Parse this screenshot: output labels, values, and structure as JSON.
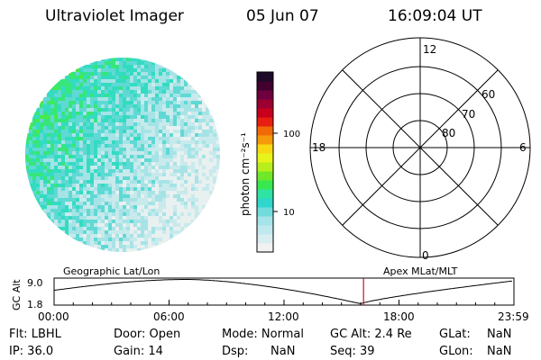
{
  "header": {
    "title": "Ultraviolet Imager",
    "date": "05 Jun 07",
    "time": "16:09:04 UT"
  },
  "colorbar": {
    "label": "photon cm⁻²s⁻¹",
    "tick_100": "100",
    "tick_10": "10",
    "colors": [
      "#f2f2f2",
      "#d8eef0",
      "#bfe9ee",
      "#a5e4e8",
      "#70dcdc",
      "#2fd6cc",
      "#2fe3a5",
      "#39e84e",
      "#70e82a",
      "#b7ee1c",
      "#e6f41a",
      "#f7d812",
      "#f59a0a",
      "#f06a08",
      "#e81e10",
      "#c8001e",
      "#9c0030",
      "#6e003f",
      "#42002f",
      "#1e0a28"
    ]
  },
  "polar": {
    "labels": {
      "top": "12",
      "left": "18",
      "right": "6",
      "bottom": "0"
    },
    "rings": [
      "60",
      "70",
      "80"
    ]
  },
  "timeline": {
    "left_label": "Geographic Lat/Lon",
    "right_label": "Apex MLat/MLT",
    "y_axis": "GC Alt",
    "y_max": "9.0",
    "y_min": "1.8",
    "ticks": [
      "00:00",
      "06:00",
      "12:00",
      "18:00",
      "23:59"
    ],
    "marker_hour": 16.15
  },
  "info": {
    "flt": "Flt:  LBHL",
    "ip": "IP:  36.0",
    "door": "Door:  Open",
    "gain": "Gain:  14",
    "mode": "Mode:  Normal",
    "dsp": "Dsp:",
    "dsp_val": "NaN",
    "gcalt": "GC Alt:  2.4 Re",
    "seq": "Seq:  39",
    "glat": "GLat:",
    "glat_val": "NaN",
    "glon": "GLon:",
    "glon_val": "NaN"
  }
}
